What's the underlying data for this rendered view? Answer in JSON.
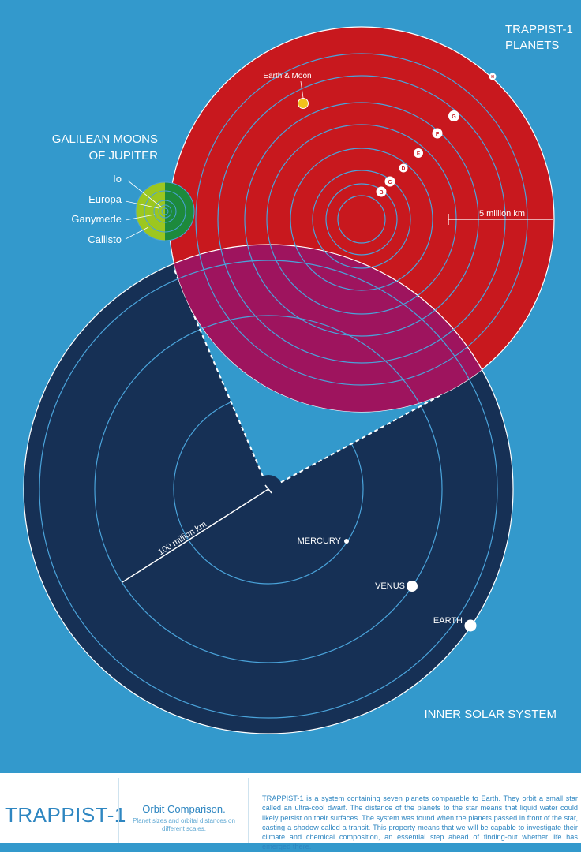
{
  "colors": {
    "background": "#3399cc",
    "inner_solar_system": "#163055",
    "trappist": "#c8181e",
    "overlap": "#9e145e",
    "moons_outer": "#9cc720",
    "moons_inner": "#1d8a3c",
    "earth_moon_dot": "#f2c21c",
    "orbit_line": "#4aa3da"
  },
  "trappist": {
    "heading_line1": "TRAPPIST-1",
    "heading_line2": "PLANETS",
    "earth_moon_label": "Earth & Moon",
    "scale_label": "5 million km",
    "planets": [
      {
        "letter": "B"
      },
      {
        "letter": "C"
      },
      {
        "letter": "D"
      },
      {
        "letter": "E"
      },
      {
        "letter": "F"
      },
      {
        "letter": "G"
      },
      {
        "letter": "H"
      }
    ]
  },
  "galilean": {
    "heading_line1": "GALILEAN MOONS",
    "heading_line2": "OF JUPITER",
    "moons": [
      "Io",
      "Europa",
      "Ganymede",
      "Callisto"
    ]
  },
  "solar": {
    "heading": "INNER SOLAR SYSTEM",
    "scale_label": "100 million km",
    "planets": [
      "MERCURY",
      "VENUS",
      "EARTH"
    ]
  },
  "footer": {
    "title": "TRAPPIST-1",
    "subtitle": "Orbit Comparison.",
    "note": "Planet sizes and orbital distances on different scales.",
    "description": "TRAPPIST-1 is a system containing seven planets comparable to Earth. They orbit a small star called an ultra-cool dwarf. The distance of the planets to the star means that liquid water could likely persist on their surfaces. The system was found when the planets passed in front of the star, casting a shadow called a transit. This property means that we will be capable to investigate their climate and chemical composition, an essential step ahead of finding-out whether life has emerged there."
  }
}
